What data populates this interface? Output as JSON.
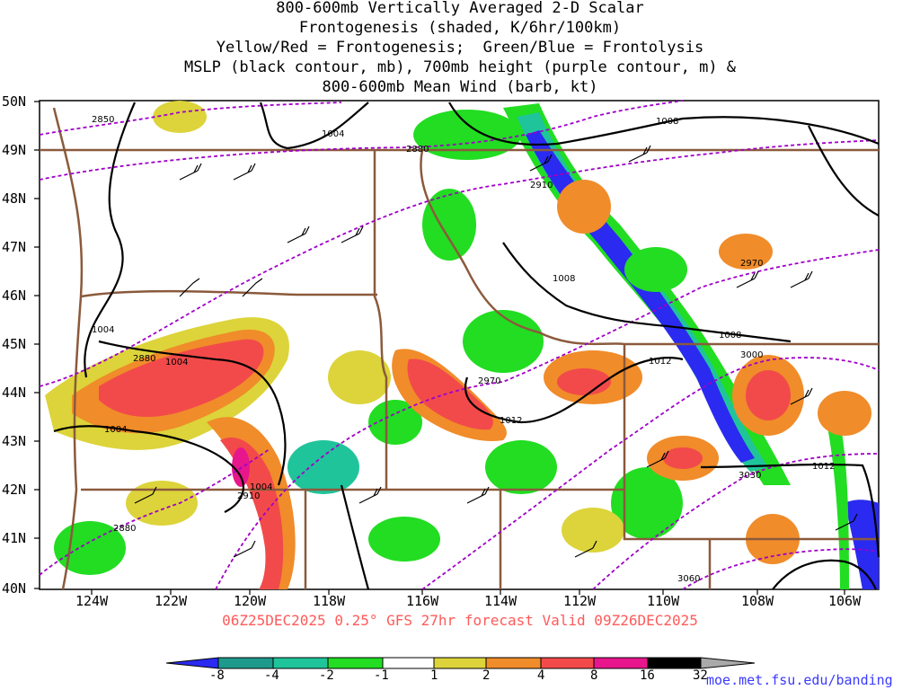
{
  "title_lines": [
    "800-600mb Vertically Averaged 2-D Scalar",
    "Frontogenesis (shaded, K/6hr/100km)",
    "Yellow/Red = Frontogenesis;  Green/Blue = Frontolysis",
    "MSLP (black contour, mb), 700mb height (purple contour, m) &",
    "800-600mb Mean Wind (barb, kt)"
  ],
  "lat_labels": [
    "50N",
    "49N",
    "48N",
    "47N",
    "46N",
    "45N",
    "44N",
    "43N",
    "42N",
    "41N",
    "40N"
  ],
  "lon_labels": [
    "124W",
    "122W",
    "120W",
    "118W",
    "116W",
    "114W",
    "112W",
    "110W",
    "108W",
    "106W"
  ],
  "footer": "06Z25DEC2025 0.25° GFS 27hr forecast Valid 09Z26DEC2025",
  "credit": "moe.met.fsu.edu/banding",
  "colorbar": {
    "labels": [
      "-8",
      "-4",
      "-2",
      "-1",
      "1",
      "2",
      "4",
      "8",
      "16",
      "32"
    ],
    "colors": [
      "#2a2af0",
      "#1e9a8c",
      "#20c49a",
      "#22dd22",
      "#ffffff",
      "#dcd43a",
      "#f08c2a",
      "#f24a4a",
      "#e8168c",
      "#000000",
      "#aaaaaa"
    ]
  },
  "mslp_labels": [
    "1004",
    "1008",
    "1004",
    "1004",
    "1004",
    "1004",
    "1008",
    "1008",
    "1012",
    "1012",
    "1012"
  ],
  "height_labels": [
    "2850",
    "2880",
    "2910",
    "2970",
    "2880",
    "2970",
    "3000",
    "3030",
    "2910",
    "2880",
    "3060"
  ],
  "colors": {
    "mslp": "#000000",
    "height": "#a000c8",
    "borders": "#8b5a3c",
    "blob_green": "#22dd22",
    "blob_teal": "#20c49a",
    "blob_blue": "#2a2af0",
    "blob_yellow": "#dcd43a",
    "blob_orange": "#f08c2a",
    "blob_red": "#f24a4a",
    "blob_magenta": "#e8168c"
  }
}
